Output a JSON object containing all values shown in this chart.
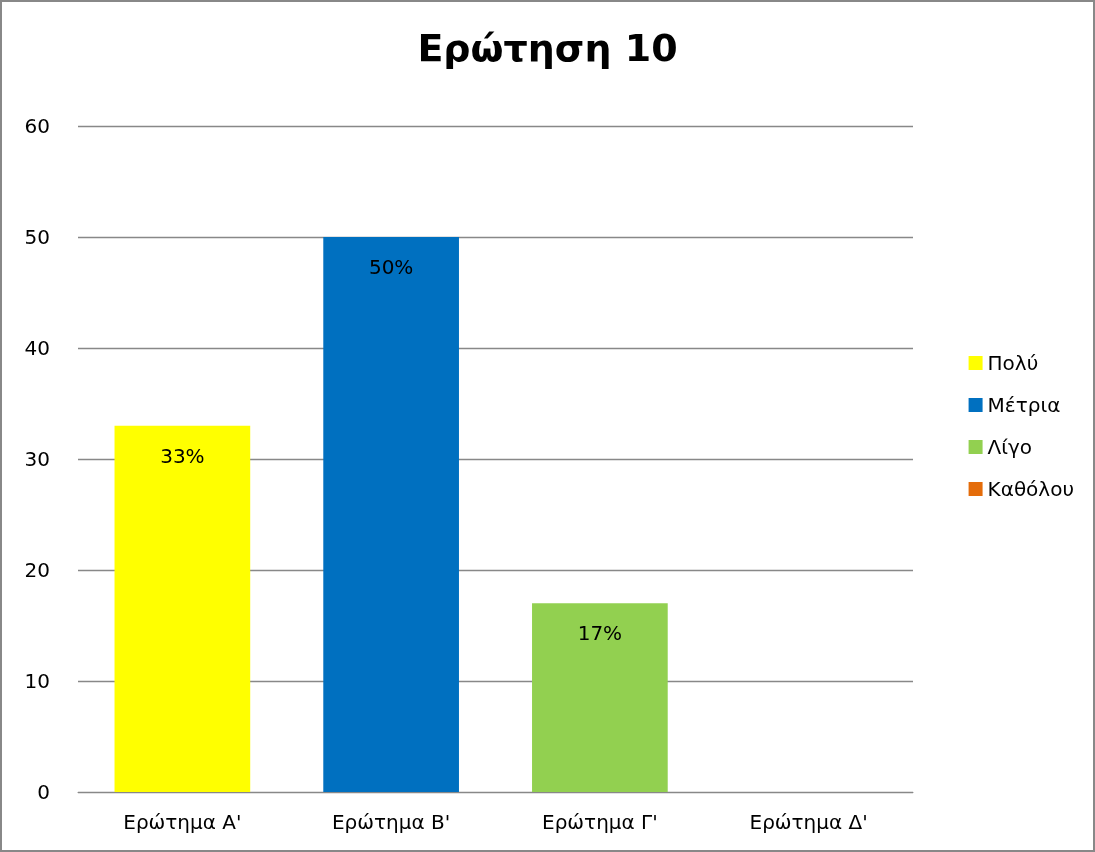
{
  "chart_data": {
    "type": "bar",
    "title": "Ερώτηση 10",
    "categories": [
      "Ερώτημα Α'",
      "Ερώτημα Β'",
      "Ερώτημα Γ'",
      "Ερώτημα Δ'"
    ],
    "stacked": true,
    "ylim": [
      0,
      60
    ],
    "yticks": [
      0,
      10,
      20,
      30,
      40,
      50,
      60
    ],
    "grid": "y",
    "legend": "right",
    "series": [
      {
        "name": "Πολύ",
        "color": "#ffff00",
        "values": [
          33,
          null,
          null,
          null
        ],
        "value_labels": [
          "33%",
          null,
          null,
          null
        ]
      },
      {
        "name": "Μέτρια",
        "color": "#0070c0",
        "values": [
          null,
          50,
          null,
          null
        ],
        "value_labels": [
          null,
          "50%",
          null,
          null
        ]
      },
      {
        "name": "Λίγο",
        "color": "#92d050",
        "values": [
          null,
          null,
          17,
          null
        ],
        "value_labels": [
          null,
          null,
          "17%",
          null
        ]
      },
      {
        "name": "Καθόλου",
        "color": "#e46c0a",
        "values": [
          null,
          null,
          null,
          0
        ],
        "value_labels": [
          null,
          null,
          null,
          null
        ]
      }
    ]
  }
}
